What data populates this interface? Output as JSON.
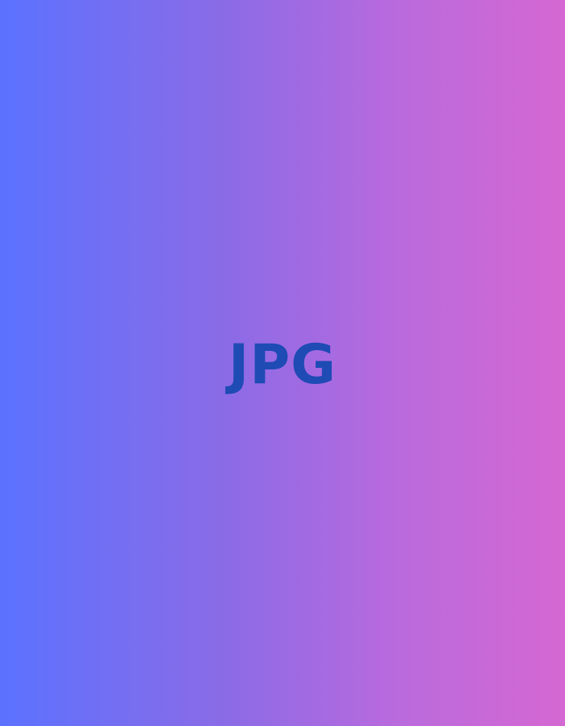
{
  "placeholder": {
    "label": "JPG",
    "text_color": "#1f4bb5",
    "gradient_start": "#5b72ff",
    "gradient_end": "#d568d2"
  }
}
